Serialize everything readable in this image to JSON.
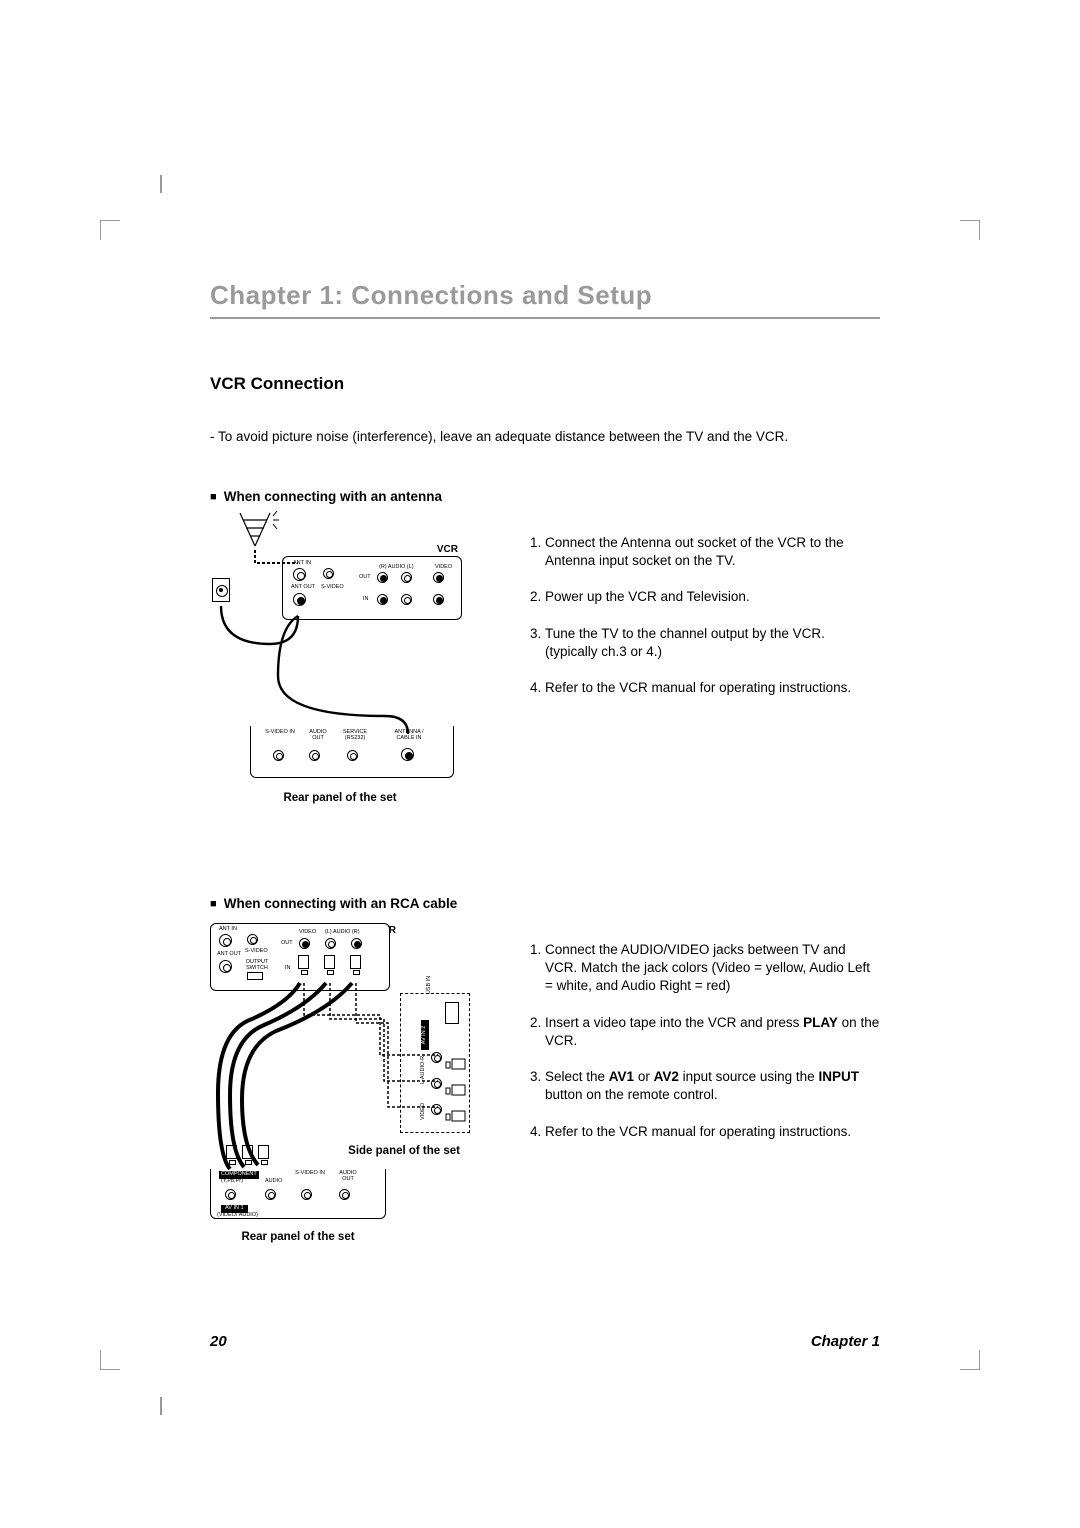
{
  "chapter_title": "Chapter 1: Connections and Setup",
  "section_title": "VCR Connection",
  "intro_text": "- To avoid picture noise (interference), leave an adequate distance between the TV and the VCR.",
  "section_a": {
    "heading": "When connecting with an antenna",
    "vcr_label": "VCR",
    "rear_caption": "Rear panel of the set",
    "labels": {
      "ant_in": "ANT IN",
      "ant_out": "ANT OUT",
      "svideo": "S-VIDEO",
      "out": "OUT",
      "in": "IN",
      "r_audio": "(R) AUDIO (L)",
      "video": "VIDEO",
      "svideo_in": "S-VIDEO IN",
      "audio_out": "AUDIO OUT",
      "service": "SERVICE (RS232)",
      "antenna_cable": "ANTENNA / CABLE IN"
    },
    "steps": [
      "Connect the Antenna out socket of the VCR to the Antenna input socket on the TV.",
      "Power up the VCR and Television.",
      "Tune the TV to the channel output by the VCR. (typically ch.3 or 4.)",
      "Refer to the VCR manual for operating instructions."
    ]
  },
  "section_b": {
    "heading": "When connecting with an RCA cable",
    "vcr_label": "VCR",
    "rear_caption": "Rear panel of the set",
    "side_caption": "Side panel of the set",
    "labels": {
      "ant_in": "ANT IN",
      "ant_out": "ANT OUT",
      "svideo": "S-VIDEO",
      "output_switch": "OUTPUT SWITCH",
      "out": "OUT",
      "in": "IN",
      "video": "VIDEO",
      "l_audio_r": "(L) AUDIO (R)",
      "usb_in": "USB IN",
      "av_in_2": "AV IN 2",
      "l_audio_r_side": "L-AUDIO-R",
      "video_side": "VIDEO",
      "component": "COMPONENT",
      "ypbpr": "(Y,Pb,Pr)",
      "audio": "AUDIO",
      "svideo_in": "S-VIDEO IN",
      "audio_out": "AUDIO OUT",
      "av_in_1": "AV IN 1",
      "video_audio": "(VIDEO/ AUDIO)"
    },
    "steps_html": [
      "Connect the AUDIO/VIDEO jacks between TV and VCR. Match the jack colors (Video = yellow, Audio Left = white, and Audio Right = red)",
      "Insert a video tape into the VCR and press <b>PLAY</b> on the VCR.",
      "Select the <b>AV1</b> or <b>AV2</b> input source using the <b>INPUT</b> button on the remote control.",
      "Refer to the VCR manual for operating instructions."
    ]
  },
  "footer": {
    "page_number": "20",
    "chapter_ref": "Chapter 1"
  }
}
